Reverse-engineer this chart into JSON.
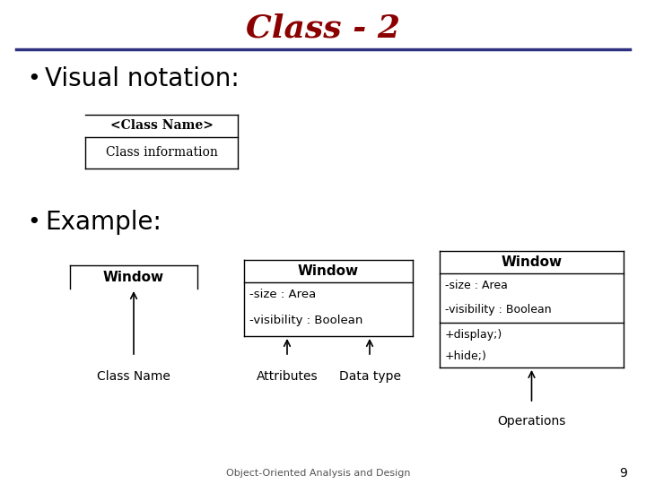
{
  "title": "Class - 2",
  "title_color": "#8B0000",
  "title_fontsize": 26,
  "title_style": "italic",
  "slide_bg": "#ffffff",
  "header_line_color": "#2E3080",
  "bullet1": "Visual notation:",
  "bullet2": "Example:",
  "bullet_fontsize": 20,
  "footer_text": "Object-Oriented Analysis and Design",
  "footer_page": "9",
  "uml_class1_name": "<Class Name>",
  "uml_class1_info": "Class information",
  "ex_class1_name": "Window",
  "ex_class2_name": "Window",
  "ex_class2_attr1": "-size : Area",
  "ex_class2_attr2": "-visibility : Boolean",
  "ex_class3_name": "Window",
  "ex_class3_attr1": "-size : Area",
  "ex_class3_attr2": "-visibility : Boolean",
  "ex_class3_op1": "+display;)",
  "ex_class3_op2": "+hide;)",
  "label1": "Class Name",
  "label2": "Attributes",
  "label3": "Data type",
  "label4": "Operations"
}
